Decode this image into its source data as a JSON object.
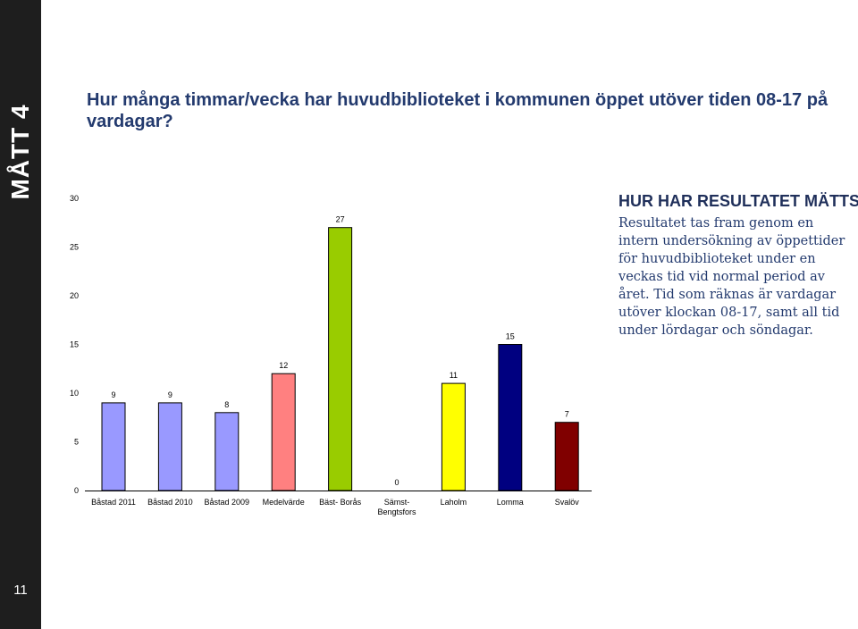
{
  "sidebar": {
    "title": "MÅTT 4",
    "page_number": "11"
  },
  "question": "Hur många timmar/vecka har huvudbiblioteket i kommunen öppet utöver tiden 08-17 på vardagar?",
  "info": {
    "heading": "HUR HAR RESULTATET MÄTTS?",
    "text": "Resultatet tas fram genom en intern undersökning av öppettider för huvudbiblioteket under en veckas tid vid normal period av året. Tid som räknas är vardagar utöver klockan 08-17, samt all tid under lördagar och söndagar."
  },
  "colors": {
    "sidebar": "#1e1e1e",
    "heading": "#233a6e"
  },
  "chart_data": {
    "type": "bar",
    "categories": [
      "Båstad 2011",
      "Båstad 2010",
      "Båstad 2009",
      "Medelvärde",
      "Bäst- Borås",
      "Sämst-Bengtsfors",
      "Laholm",
      "Lomma",
      "Svalöv"
    ],
    "values": [
      9,
      9,
      8,
      12,
      27,
      0,
      11,
      15,
      7
    ],
    "data_labels": [
      "9",
      "9",
      "8",
      "12",
      "27",
      "0",
      "11",
      "15",
      "7"
    ],
    "colors": [
      "#9999ff",
      "#9999ff",
      "#9999ff",
      "#ff8080",
      "#99cc00",
      "#cccccc",
      "#ffff00",
      "#000080",
      "#800000"
    ],
    "ylim": [
      0,
      30
    ],
    "yticks": [
      0,
      5,
      10,
      15,
      20,
      25,
      30
    ],
    "grid": false,
    "legend": "none"
  }
}
